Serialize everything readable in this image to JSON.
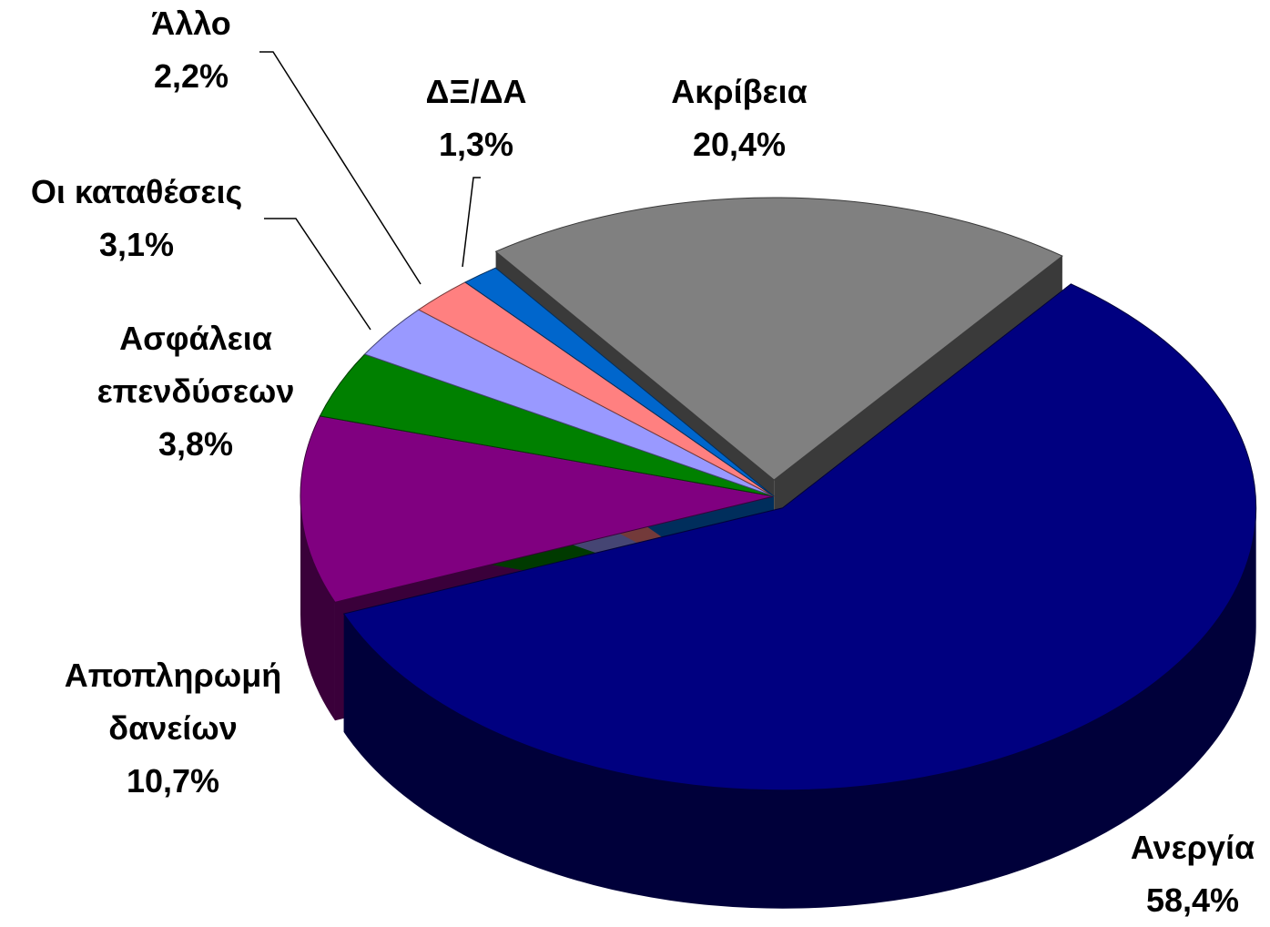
{
  "chart_data": {
    "type": "pie",
    "categories": [
      "Ακρίβεια",
      "Ανεργία",
      "Αποπληρωμή δανείων",
      "Ασφάλεια επενδύσεων",
      "Οι καταθέσεις",
      "Άλλο",
      "ΔΞ/ΔΑ"
    ],
    "values": [
      20.4,
      58.4,
      10.7,
      3.8,
      3.1,
      2.2,
      1.3
    ],
    "value_labels": [
      "20,4%",
      "58,4%",
      "10,7%",
      "3,8%",
      "3,1%",
      "2,2%",
      "1,3%"
    ],
    "colors": [
      "#808080",
      "#000080",
      "#800080",
      "#008000",
      "#9999ff",
      "#ff8080",
      "#0066cc"
    ]
  }
}
